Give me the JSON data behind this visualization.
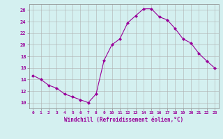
{
  "x": [
    0,
    1,
    2,
    3,
    4,
    5,
    6,
    7,
    8,
    9,
    10,
    11,
    12,
    13,
    14,
    15,
    16,
    17,
    18,
    19,
    20,
    21,
    22,
    23
  ],
  "y": [
    14.7,
    14.0,
    13.0,
    12.5,
    11.5,
    11.0,
    10.5,
    10.0,
    11.5,
    17.3,
    20.0,
    21.0,
    23.8,
    25.0,
    26.2,
    26.2,
    24.8,
    24.3,
    22.8,
    21.0,
    20.3,
    18.5,
    17.2,
    16.0
  ],
  "line_color": "#990099",
  "marker": "D",
  "marker_size": 2,
  "bg_color": "#d4f0f0",
  "grid_color": "#b0b0b0",
  "xlabel": "Windchill (Refroidissement éolien,°C)",
  "xlabel_color": "#990099",
  "tick_color": "#990099",
  "ylim": [
    9,
    27
  ],
  "yticks": [
    10,
    12,
    14,
    16,
    18,
    20,
    22,
    24,
    26
  ],
  "xlim": [
    -0.5,
    23.5
  ],
  "figsize": [
    3.2,
    2.0
  ],
  "dpi": 100
}
